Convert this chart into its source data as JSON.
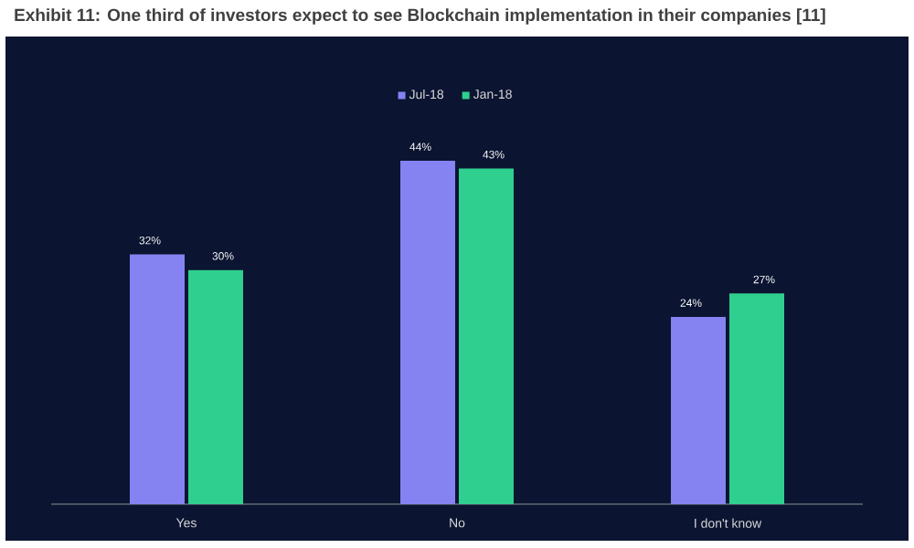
{
  "chart_data": {
    "type": "bar",
    "title": "Exhibit 11: One third of investors expect to see Blockchain implementation in their companies [11]",
    "categories": [
      "Yes",
      "No",
      "I don't know"
    ],
    "series": [
      {
        "name": "Jul-18",
        "color": "#8583f2",
        "values": [
          32,
          44,
          24
        ],
        "value_labels": [
          "32%",
          "44%",
          "24%"
        ]
      },
      {
        "name": "Jan-18",
        "color": "#2fcf8f",
        "values": [
          30,
          43,
          27
        ],
        "value_labels": [
          "30%",
          "43%",
          "27%"
        ]
      }
    ],
    "ylim": [
      0,
      44
    ],
    "legend": "top"
  }
}
